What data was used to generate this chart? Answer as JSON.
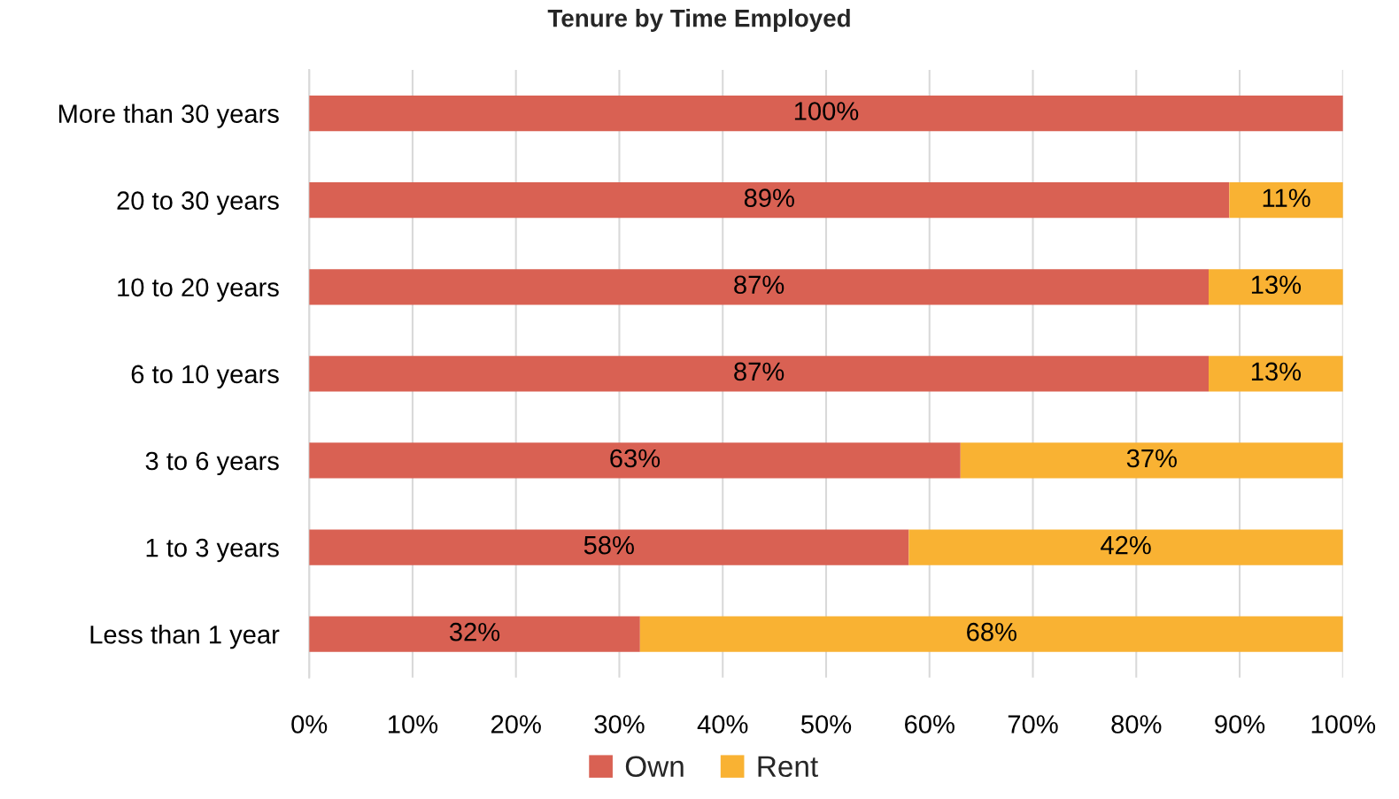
{
  "chart_data": {
    "type": "bar",
    "orientation": "horizontal",
    "stacked": true,
    "title": "Tenure by Time Employed",
    "categories": [
      "More than 30 years",
      "20 to 30 years",
      "10 to 20 years",
      "6 to 10 years",
      "3 to 6 years",
      "1 to 3 years",
      "Less than 1 year"
    ],
    "series": [
      {
        "name": "Own",
        "color": "#d96153",
        "values": [
          100,
          89,
          87,
          87,
          63,
          58,
          32
        ],
        "value_labels": [
          "100%",
          "89%",
          "87%",
          "87%",
          "63%",
          "58%",
          "32%"
        ]
      },
      {
        "name": "Rent",
        "color": "#f9b233",
        "values": [
          null,
          11,
          13,
          13,
          37,
          42,
          68
        ],
        "value_labels": [
          null,
          "11%",
          "13%",
          "13%",
          "37%",
          "42%",
          "68%"
        ]
      }
    ],
    "xlim": [
      0,
      100
    ],
    "xticks": [
      {
        "value": 0,
        "label": "0%"
      },
      {
        "value": 10,
        "label": "10%"
      },
      {
        "value": 20,
        "label": "20%"
      },
      {
        "value": 30,
        "label": "30%"
      },
      {
        "value": 40,
        "label": "40%"
      },
      {
        "value": 50,
        "label": "50%"
      },
      {
        "value": 60,
        "label": "60%"
      },
      {
        "value": 70,
        "label": "70%"
      },
      {
        "value": 80,
        "label": "80%"
      },
      {
        "value": 90,
        "label": "90%"
      },
      {
        "value": 100,
        "label": "100%"
      }
    ],
    "grid": "x",
    "legend": "bottom"
  }
}
